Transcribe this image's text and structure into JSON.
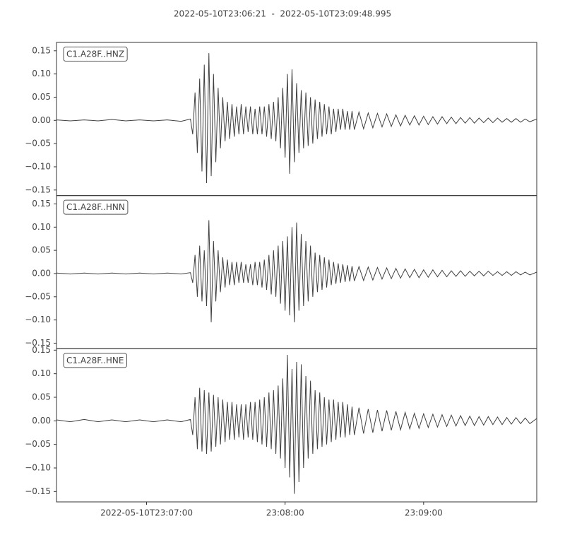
{
  "chart_data": {
    "type": "line",
    "title": "2022-05-10T23:06:21  -  2022-05-10T23:09:48.995",
    "xlim": [
      "23:06:21",
      "23:09:48.995"
    ],
    "xticks": [
      {
        "value": "23:07:00",
        "label": "2022-05-10T23:07:00"
      },
      "23:08:00",
      "23:09:00"
    ],
    "yticks": [
      {
        "value": -0.15,
        "label": "−0.15"
      },
      {
        "value": -0.1,
        "label": "−0.10"
      },
      {
        "value": -0.05,
        "label": "−0.05"
      },
      {
        "value": 0,
        "label": "0.00"
      },
      0.05,
      {
        "value": 0.1,
        "label": "0.10"
      },
      0.15
    ],
    "x": [
      "23:06:21",
      "23:06:27",
      "23:06:33",
      "23:06:39",
      "23:06:45",
      "23:06:51",
      "23:06:57",
      "23:07:03",
      "23:07:09",
      "23:07:15",
      "23:07:19",
      "23:07:20",
      "23:07:21",
      "23:07:22",
      "23:07:23",
      "23:07:24",
      "23:07:25",
      "23:07:26",
      "23:07:27",
      "23:07:28",
      "23:07:29",
      "23:07:30",
      "23:07:31",
      "23:07:32",
      "23:07:33",
      "23:07:34",
      "23:07:35",
      "23:07:36",
      "23:07:37",
      "23:07:38",
      "23:07:39",
      "23:07:40",
      "23:07:41",
      "23:07:42",
      "23:07:43",
      "23:07:44",
      "23:07:45",
      "23:07:46",
      "23:07:47",
      "23:07:48",
      "23:07:49",
      "23:07:50",
      "23:07:51",
      "23:07:52",
      "23:07:53",
      "23:07:54",
      "23:07:55",
      "23:07:56",
      "23:07:57",
      "23:07:58",
      "23:07:59",
      "23:08:00",
      "23:08:01",
      "23:08:02",
      "23:08:03",
      "23:08:04",
      "23:08:05",
      "23:08:06",
      "23:08:07",
      "23:08:08",
      "23:08:09",
      "23:08:10",
      "23:08:11",
      "23:08:12",
      "23:08:13",
      "23:08:14",
      "23:08:15",
      "23:08:16",
      "23:08:17",
      "23:08:18",
      "23:08:19",
      "23:08:20",
      "23:08:21",
      "23:08:22",
      "23:08:23",
      "23:08:24",
      "23:08:25",
      "23:08:26",
      "23:08:27",
      "23:08:28",
      "23:08:29",
      "23:08:30",
      "23:08:32",
      "23:08:34",
      "23:08:36",
      "23:08:38",
      "23:08:40",
      "23:08:42",
      "23:08:44",
      "23:08:46",
      "23:08:48",
      "23:08:50",
      "23:08:52",
      "23:08:54",
      "23:08:56",
      "23:08:58",
      "23:09:00",
      "23:09:02",
      "23:09:04",
      "23:09:06",
      "23:09:08",
      "23:09:10",
      "23:09:12",
      "23:09:14",
      "23:09:16",
      "23:09:18",
      "23:09:20",
      "23:09:22",
      "23:09:24",
      "23:09:26",
      "23:09:28",
      "23:09:30",
      "23:09:32",
      "23:09:34",
      "23:09:36",
      "23:09:38",
      "23:09:40",
      "23:09:42",
      "23:09:44",
      "23:09:46",
      "23:09:48.995"
    ],
    "series": [
      {
        "name": "C1.A28F..HNZ",
        "color": "#404040",
        "ylim": [
          -0.162,
          0.168
        ],
        "values": [
          0.001,
          -0.001,
          0.001,
          -0.001,
          0.002,
          -0.001,
          0.001,
          -0.001,
          0.001,
          -0.002,
          0.003,
          -0.03,
          0.06,
          -0.07,
          0.09,
          -0.11,
          0.12,
          -0.135,
          0.145,
          -0.12,
          0.1,
          -0.09,
          0.07,
          -0.06,
          0.05,
          -0.045,
          0.04,
          -0.04,
          0.035,
          -0.035,
          0.03,
          -0.03,
          0.035,
          -0.03,
          0.03,
          -0.025,
          0.03,
          -0.03,
          0.025,
          -0.03,
          0.03,
          -0.03,
          0.03,
          -0.035,
          0.035,
          -0.04,
          0.04,
          -0.045,
          0.05,
          -0.06,
          0.07,
          -0.08,
          0.1,
          -0.115,
          0.11,
          -0.09,
          0.08,
          -0.07,
          0.065,
          -0.06,
          0.06,
          -0.055,
          0.05,
          -0.05,
          0.045,
          -0.04,
          0.04,
          -0.035,
          0.035,
          -0.03,
          0.03,
          -0.03,
          0.025,
          -0.025,
          0.025,
          -0.02,
          0.025,
          -0.02,
          0.02,
          -0.02,
          0.02,
          -0.02,
          0.018,
          -0.018,
          0.016,
          -0.016,
          0.015,
          -0.014,
          0.014,
          -0.013,
          0.012,
          -0.012,
          0.011,
          -0.01,
          0.01,
          -0.01,
          0.009,
          -0.009,
          0.008,
          -0.008,
          0.008,
          -0.007,
          0.007,
          -0.007,
          0.006,
          -0.006,
          0.006,
          -0.006,
          0.005,
          -0.005,
          0.005,
          -0.005,
          0.005,
          -0.004,
          0.004,
          -0.004,
          0.004,
          -0.004,
          0.003,
          -0.003,
          0.003
        ]
      },
      {
        "name": "C1.A28F..HNN",
        "color": "#404040",
        "ylim": [
          -0.162,
          0.168
        ],
        "values": [
          0.001,
          -0.001,
          0.001,
          -0.001,
          0.001,
          -0.001,
          0.001,
          -0.001,
          0.001,
          -0.001,
          0.002,
          -0.02,
          0.04,
          -0.05,
          0.06,
          -0.06,
          0.05,
          -0.07,
          0.115,
          -0.105,
          0.07,
          -0.06,
          0.05,
          -0.04,
          0.035,
          -0.03,
          0.03,
          -0.025,
          0.025,
          -0.025,
          0.025,
          -0.02,
          0.025,
          -0.02,
          0.02,
          -0.02,
          0.02,
          -0.025,
          0.025,
          -0.025,
          0.025,
          -0.03,
          0.03,
          -0.035,
          0.04,
          -0.045,
          0.05,
          -0.05,
          0.06,
          -0.065,
          0.07,
          -0.08,
          0.08,
          -0.09,
          0.1,
          -0.105,
          0.11,
          -0.08,
          0.085,
          -0.07,
          0.07,
          -0.06,
          0.06,
          -0.05,
          0.045,
          -0.04,
          0.04,
          -0.035,
          0.035,
          -0.03,
          0.03,
          -0.025,
          0.025,
          -0.022,
          0.022,
          -0.02,
          0.02,
          -0.018,
          0.018,
          -0.017,
          0.016,
          -0.016,
          0.015,
          -0.015,
          0.014,
          -0.014,
          0.013,
          -0.012,
          0.012,
          -0.011,
          0.011,
          -0.01,
          0.01,
          -0.009,
          0.009,
          -0.009,
          0.008,
          -0.008,
          0.008,
          -0.007,
          0.007,
          -0.007,
          0.006,
          -0.006,
          0.006,
          -0.006,
          0.005,
          -0.005,
          0.005,
          -0.005,
          0.005,
          -0.004,
          0.004,
          -0.004,
          0.004,
          -0.004,
          0.004,
          -0.003,
          0.003,
          -0.003,
          0.003
        ]
      },
      {
        "name": "C1.A28F..HNE",
        "color": "#404040",
        "ylim": [
          -0.172,
          0.153
        ],
        "values": [
          0.002,
          -0.002,
          0.003,
          -0.002,
          0.002,
          -0.002,
          0.002,
          -0.002,
          0.002,
          -0.002,
          0.003,
          -0.03,
          0.05,
          -0.06,
          0.07,
          -0.065,
          0.065,
          -0.07,
          0.06,
          -0.065,
          0.055,
          -0.055,
          0.05,
          -0.05,
          0.045,
          -0.045,
          0.04,
          -0.04,
          0.04,
          -0.04,
          0.035,
          -0.035,
          0.035,
          -0.04,
          0.035,
          -0.035,
          0.04,
          -0.04,
          0.04,
          -0.045,
          0.045,
          -0.05,
          0.05,
          -0.055,
          0.06,
          -0.06,
          0.065,
          -0.07,
          0.075,
          -0.08,
          0.09,
          -0.1,
          0.14,
          -0.12,
          0.11,
          -0.155,
          0.125,
          -0.13,
          0.12,
          -0.1,
          0.095,
          -0.08,
          0.085,
          -0.07,
          0.065,
          -0.06,
          0.06,
          -0.055,
          0.05,
          -0.05,
          0.045,
          -0.045,
          0.045,
          -0.04,
          0.04,
          -0.035,
          0.04,
          -0.035,
          0.035,
          -0.03,
          0.03,
          -0.03,
          0.028,
          -0.027,
          0.025,
          -0.025,
          0.023,
          -0.022,
          0.022,
          -0.02,
          0.02,
          -0.019,
          0.018,
          -0.017,
          0.016,
          -0.016,
          0.015,
          -0.014,
          0.014,
          -0.013,
          0.013,
          -0.012,
          0.012,
          -0.011,
          0.011,
          -0.01,
          0.01,
          -0.01,
          0.009,
          -0.009,
          0.009,
          -0.008,
          0.008,
          -0.008,
          0.007,
          -0.007,
          0.007,
          -0.006,
          0.006,
          -0.006,
          0.005
        ]
      }
    ]
  }
}
